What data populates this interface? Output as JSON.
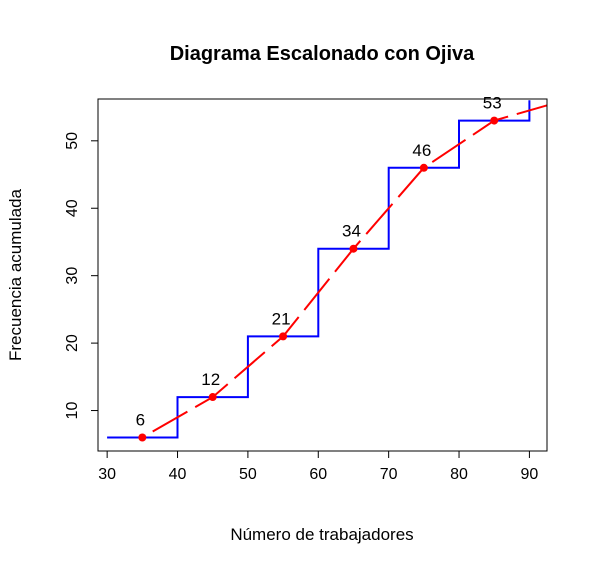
{
  "chart_data": {
    "type": "line",
    "title": "Diagrama Escalonado con Ojiva",
    "xlabel": "Número de trabajadores",
    "ylabel": "Frecuencia acumulada",
    "xlim": [
      28.7,
      92.5
    ],
    "ylim": [
      4.0,
      56.2
    ],
    "x_ticks": [
      30,
      40,
      50,
      60,
      70,
      80,
      90
    ],
    "y_ticks": [
      10,
      20,
      30,
      40,
      50
    ],
    "grid": false,
    "legend": "none",
    "colors": {
      "step": "#0000ff",
      "ogive": "#ff0000",
      "points": "#ff0000"
    },
    "series": [
      {
        "kind": "step",
        "x": [
          30,
          40,
          40,
          50,
          50,
          60,
          60,
          70,
          70,
          80,
          80,
          90,
          90
        ],
        "y": [
          6,
          6,
          12,
          12,
          21,
          21,
          34,
          34,
          46,
          46,
          53,
          53,
          56
        ]
      },
      {
        "kind": "ogive",
        "style": "dashed",
        "x": [
          35,
          45,
          55,
          65,
          75,
          85,
          95
        ],
        "y": [
          6,
          12,
          21,
          34,
          46,
          53,
          56
        ]
      }
    ],
    "points": [
      {
        "x": 35,
        "y": 6,
        "label": "6"
      },
      {
        "x": 45,
        "y": 12,
        "label": "12"
      },
      {
        "x": 55,
        "y": 21,
        "label": "21"
      },
      {
        "x": 65,
        "y": 34,
        "label": "34"
      },
      {
        "x": 75,
        "y": 46,
        "label": "46"
      },
      {
        "x": 85,
        "y": 53,
        "label": "53"
      }
    ]
  }
}
